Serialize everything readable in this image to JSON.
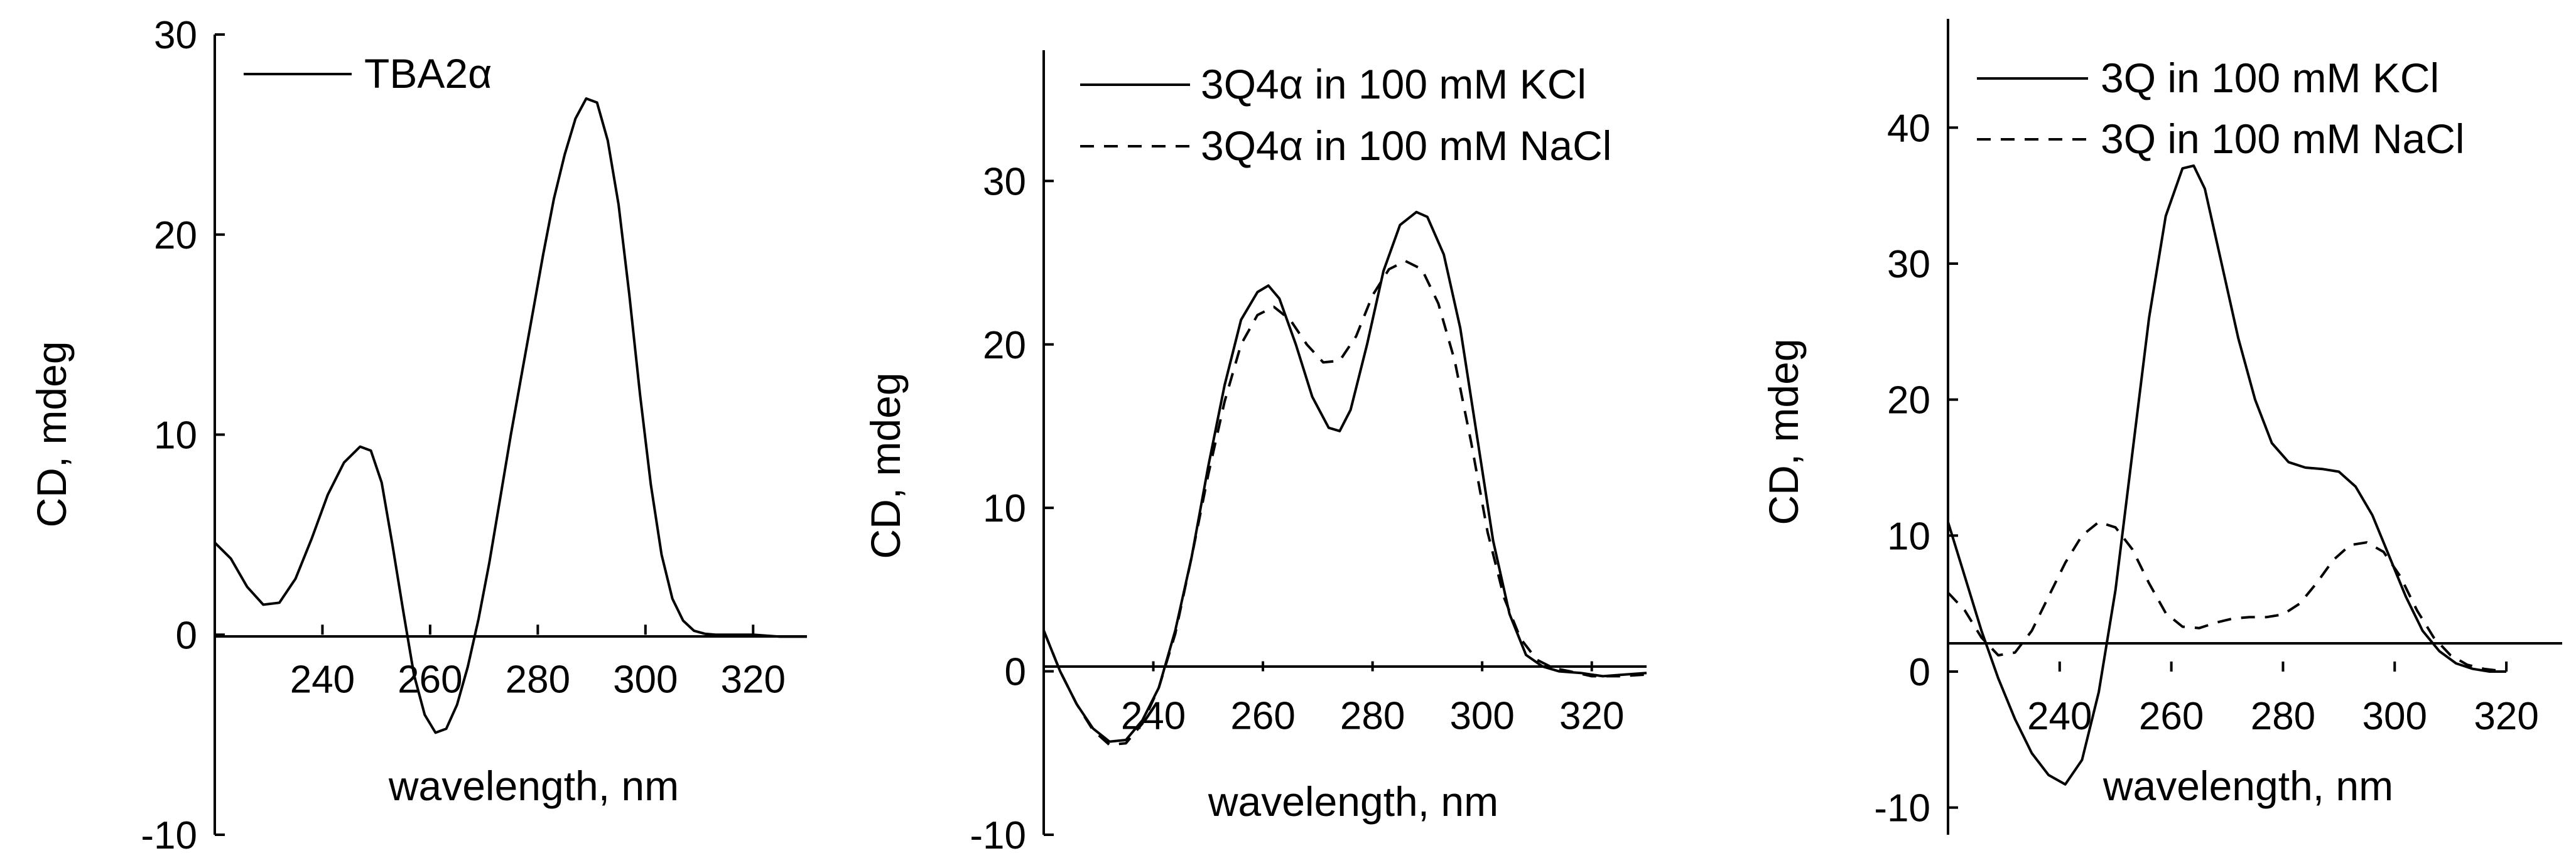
{
  "colors": {
    "line": "#000000",
    "background": "#ffffff"
  },
  "chart_data": [
    {
      "type": "line",
      "xlabel": "wavelength, nm",
      "ylabel": "CD, mdeg",
      "xlim": [
        220,
        330
      ],
      "ylim": [
        -10,
        30
      ],
      "xticks": [
        "240",
        "260",
        "280",
        "300",
        "320"
      ],
      "yticks": [
        "-10",
        "0",
        "10",
        "20",
        "30"
      ],
      "legend_position": "top-left",
      "series": [
        {
          "name": "TBA2α",
          "style": "solid",
          "x": [
            220,
            223,
            226,
            229,
            232,
            235,
            238,
            241,
            244,
            247,
            249,
            251,
            253,
            255,
            257,
            259,
            261,
            263,
            265,
            267,
            269,
            271,
            273,
            275,
            277,
            279,
            281,
            283,
            285,
            287,
            289,
            291,
            293,
            295,
            297,
            299,
            301,
            303,
            305,
            307,
            309,
            311,
            313,
            316,
            320,
            325,
            330
          ],
          "y": [
            4.6,
            3.8,
            2.4,
            1.5,
            1.6,
            2.8,
            4.8,
            7.0,
            8.6,
            9.4,
            9.2,
            7.6,
            4.5,
            1.2,
            -2.0,
            -4.0,
            -4.9,
            -4.7,
            -3.5,
            -1.6,
            0.8,
            3.6,
            6.8,
            10.0,
            13.0,
            16.0,
            19.0,
            21.8,
            24.0,
            25.8,
            26.8,
            26.6,
            24.7,
            21.5,
            17.0,
            12.0,
            7.5,
            4.0,
            1.8,
            0.7,
            0.2,
            0.05,
            0.0,
            0.0,
            0.0,
            -0.1,
            -0.1
          ]
        }
      ]
    },
    {
      "type": "line",
      "xlabel": "wavelength, nm",
      "ylabel": "CD, mdeg",
      "xlim": [
        220,
        330
      ],
      "ylim": [
        -10,
        38
      ],
      "xticks": [
        "240",
        "260",
        "280",
        "300",
        "320"
      ],
      "yticks": [
        "-10",
        "0",
        "10",
        "20",
        "30"
      ],
      "legend_position": "top-left",
      "series": [
        {
          "name": "3Q4α in 100 mM KCl",
          "style": "solid",
          "x": [
            220,
            223,
            226,
            229,
            232,
            235,
            238,
            241,
            244,
            247,
            250,
            253,
            256,
            259,
            261,
            263,
            266,
            269,
            272,
            274,
            276,
            279,
            282,
            285,
            288,
            290,
            293,
            296,
            299,
            302,
            305,
            308,
            311,
            314,
            318,
            322,
            326,
            330
          ],
          "y": [
            2.5,
            0.0,
            -2.0,
            -3.5,
            -4.3,
            -4.2,
            -3.0,
            -1.0,
            2.5,
            7.0,
            12.5,
            17.5,
            21.5,
            23.2,
            23.6,
            22.8,
            20.0,
            16.8,
            14.9,
            14.7,
            16.0,
            20.0,
            24.5,
            27.3,
            28.1,
            27.8,
            25.5,
            21.0,
            14.5,
            8.0,
            3.5,
            1.0,
            0.3,
            0.0,
            -0.1,
            -0.3,
            -0.2,
            -0.1
          ]
        },
        {
          "name": "3Q4α in 100 mM NaCl",
          "style": "dashed",
          "x": [
            220,
            223,
            226,
            229,
            232,
            235,
            238,
            241,
            244,
            247,
            250,
            253,
            256,
            259,
            262,
            265,
            268,
            271,
            274,
            277,
            280,
            283,
            286,
            289,
            292,
            295,
            298,
            301,
            304,
            307,
            310,
            313,
            316,
            320,
            325,
            330
          ],
          "y": [
            2.5,
            0.0,
            -2.0,
            -3.6,
            -4.5,
            -4.4,
            -3.2,
            -1.0,
            2.3,
            7.0,
            12.0,
            16.5,
            20.0,
            21.8,
            22.3,
            21.5,
            20.0,
            18.9,
            19.0,
            20.5,
            23.0,
            24.6,
            25.1,
            24.6,
            22.5,
            19.0,
            14.0,
            8.5,
            4.5,
            2.0,
            0.7,
            0.2,
            0.0,
            -0.3,
            -0.3,
            -0.2
          ]
        }
      ]
    },
    {
      "type": "line",
      "xlabel": "wavelength, nm",
      "ylabel": "CD, mdeg",
      "xlim": [
        220,
        330
      ],
      "ylim": [
        -12,
        48
      ],
      "xticks": [
        "240",
        "260",
        "280",
        "300",
        "320"
      ],
      "yticks": [
        "-10",
        "0",
        "10",
        "20",
        "30",
        "40"
      ],
      "legend_position": "top-left",
      "series": [
        {
          "name": "3Q in 100 mM KCl",
          "style": "solid",
          "x": [
            220,
            223,
            226,
            229,
            232,
            235,
            238,
            241,
            244,
            247,
            250,
            253,
            256,
            259,
            262,
            264,
            266,
            269,
            272,
            275,
            278,
            281,
            284,
            287,
            290,
            293,
            296,
            299,
            302,
            305,
            308,
            311,
            314,
            317,
            320
          ],
          "y": [
            11.0,
            7.0,
            3.0,
            -0.5,
            -3.5,
            -6.0,
            -7.6,
            -8.3,
            -6.5,
            -1.5,
            6.0,
            16.0,
            26.0,
            33.5,
            37.0,
            37.2,
            35.5,
            30.0,
            24.5,
            20.0,
            16.8,
            15.4,
            15.0,
            14.9,
            14.7,
            13.6,
            11.5,
            8.5,
            5.5,
            3.0,
            1.5,
            0.6,
            0.2,
            0.0,
            0.0
          ]
        },
        {
          "name": "3Q in 100 mM NaCl",
          "style": "dashed",
          "x": [
            220,
            223,
            226,
            229,
            232,
            235,
            238,
            241,
            244,
            247,
            250,
            253,
            256,
            259,
            262,
            265,
            268,
            271,
            274,
            277,
            280,
            283,
            286,
            289,
            292,
            295,
            298,
            301,
            304,
            307,
            310,
            313,
            316,
            320
          ],
          "y": [
            5.8,
            4.5,
            2.5,
            1.2,
            1.4,
            3.0,
            5.5,
            8.0,
            10.0,
            11.0,
            10.6,
            9.0,
            6.5,
            4.3,
            3.3,
            3.2,
            3.6,
            3.9,
            4.0,
            4.0,
            4.2,
            5.0,
            6.5,
            8.2,
            9.3,
            9.5,
            8.8,
            7.0,
            4.5,
            2.5,
            1.2,
            0.5,
            0.2,
            0.0
          ]
        }
      ]
    }
  ]
}
